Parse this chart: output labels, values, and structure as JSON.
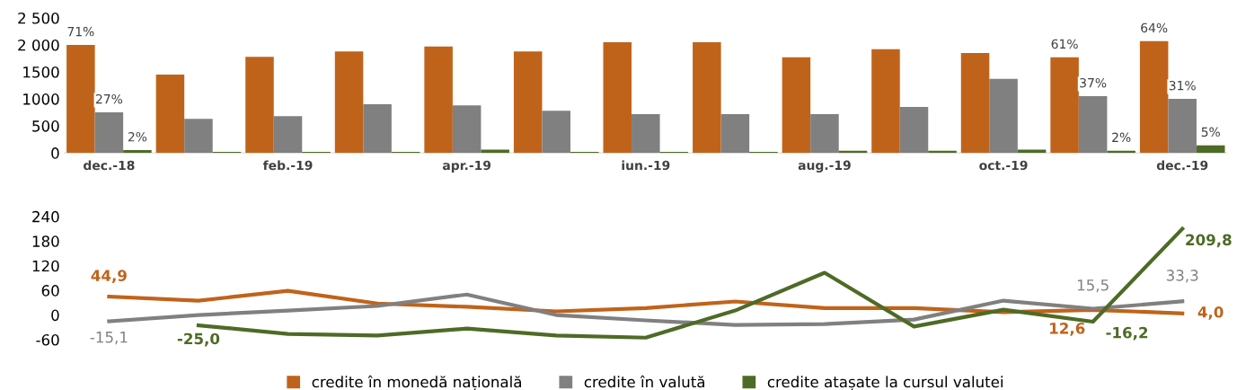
{
  "chart_data": [
    {
      "type": "bar",
      "categories": [
        "dec.-18",
        null,
        "feb.-19",
        null,
        "apr.-19",
        null,
        "iun.-19",
        null,
        "aug.-19",
        null,
        "oct.-19",
        null,
        "dec.-19"
      ],
      "series": [
        {
          "color": "#c0631a",
          "values": [
            2000,
            1450,
            1780,
            1880,
            1970,
            1880,
            2050,
            2050,
            1770,
            1920,
            1850,
            1770,
            2070
          ]
        },
        {
          "color": "#808080",
          "values": [
            750,
            630,
            680,
            900,
            880,
            780,
            720,
            720,
            720,
            850,
            1370,
            1050,
            1000
          ]
        },
        {
          "color": "#4e6b26",
          "values": [
            50,
            20,
            20,
            20,
            60,
            20,
            20,
            20,
            40,
            40,
            60,
            40,
            140
          ]
        }
      ],
      "annotations": [
        {
          "text": "71%",
          "y": 2000
        },
        {
          "text": "27%",
          "y": 750
        },
        {
          "text": "2%",
          "y": 50
        },
        {
          "text": "61%",
          "y": 1770
        },
        {
          "text": "37%",
          "y": 1050
        },
        {
          "text": "2%",
          "y": 40
        },
        {
          "text": "64%",
          "y": 2070
        },
        {
          "text": "31%",
          "y": 1000
        },
        {
          "text": "5%",
          "y": 140
        }
      ],
      "ylim": [
        0,
        2500
      ],
      "yticks": [
        0,
        500,
        1000,
        1500,
        {
          "value": 2000,
          "label": "2 000"
        },
        {
          "value": 2500,
          "label": "2 500"
        }
      ],
      "grid": false,
      "legend": false
    },
    {
      "type": "line",
      "categories": [
        null,
        null,
        null,
        null,
        null,
        null,
        null,
        null,
        null,
        null,
        null,
        null,
        null
      ],
      "series": [
        {
          "name": "credite în monedă națională",
          "color": "#c0631a",
          "values": [
            44.9,
            35,
            59,
            28,
            20,
            9,
            17,
            33,
            17,
            17,
            7,
            12.6,
            4.0
          ],
          "value_labels": [
            "44,9",
            null,
            null,
            null,
            null,
            null,
            null,
            null,
            null,
            null,
            null,
            "12,6",
            "4,0"
          ]
        },
        {
          "name": "credite în valută",
          "color": "#808080",
          "values": [
            -15.1,
            0,
            11,
            22,
            50,
            0,
            -13,
            -24,
            -22,
            -11,
            35,
            15.5,
            33.3
          ],
          "value_labels": [
            "-15,1",
            null,
            null,
            null,
            null,
            null,
            null,
            null,
            null,
            null,
            null,
            "15,5",
            "33,3"
          ]
        },
        {
          "name": "credite atașate la cursul valutei",
          "color": "#4e6b26",
          "values": [
            null,
            -25.0,
            -46,
            -50,
            -33,
            -50,
            -55,
            11,
            103,
            -28,
            13,
            -16.2,
            209.8
          ],
          "value_labels": [
            null,
            "-25,0",
            null,
            null,
            null,
            null,
            null,
            null,
            null,
            null,
            null,
            "-16,2",
            "209,8"
          ]
        }
      ],
      "ylim": [
        -60,
        240
      ],
      "yticks": [
        -60,
        0,
        60,
        120,
        180,
        240
      ],
      "tick_labels": "y",
      "grid": false,
      "legend": "bottom",
      "marker": "none",
      "line_style": "solid"
    }
  ]
}
